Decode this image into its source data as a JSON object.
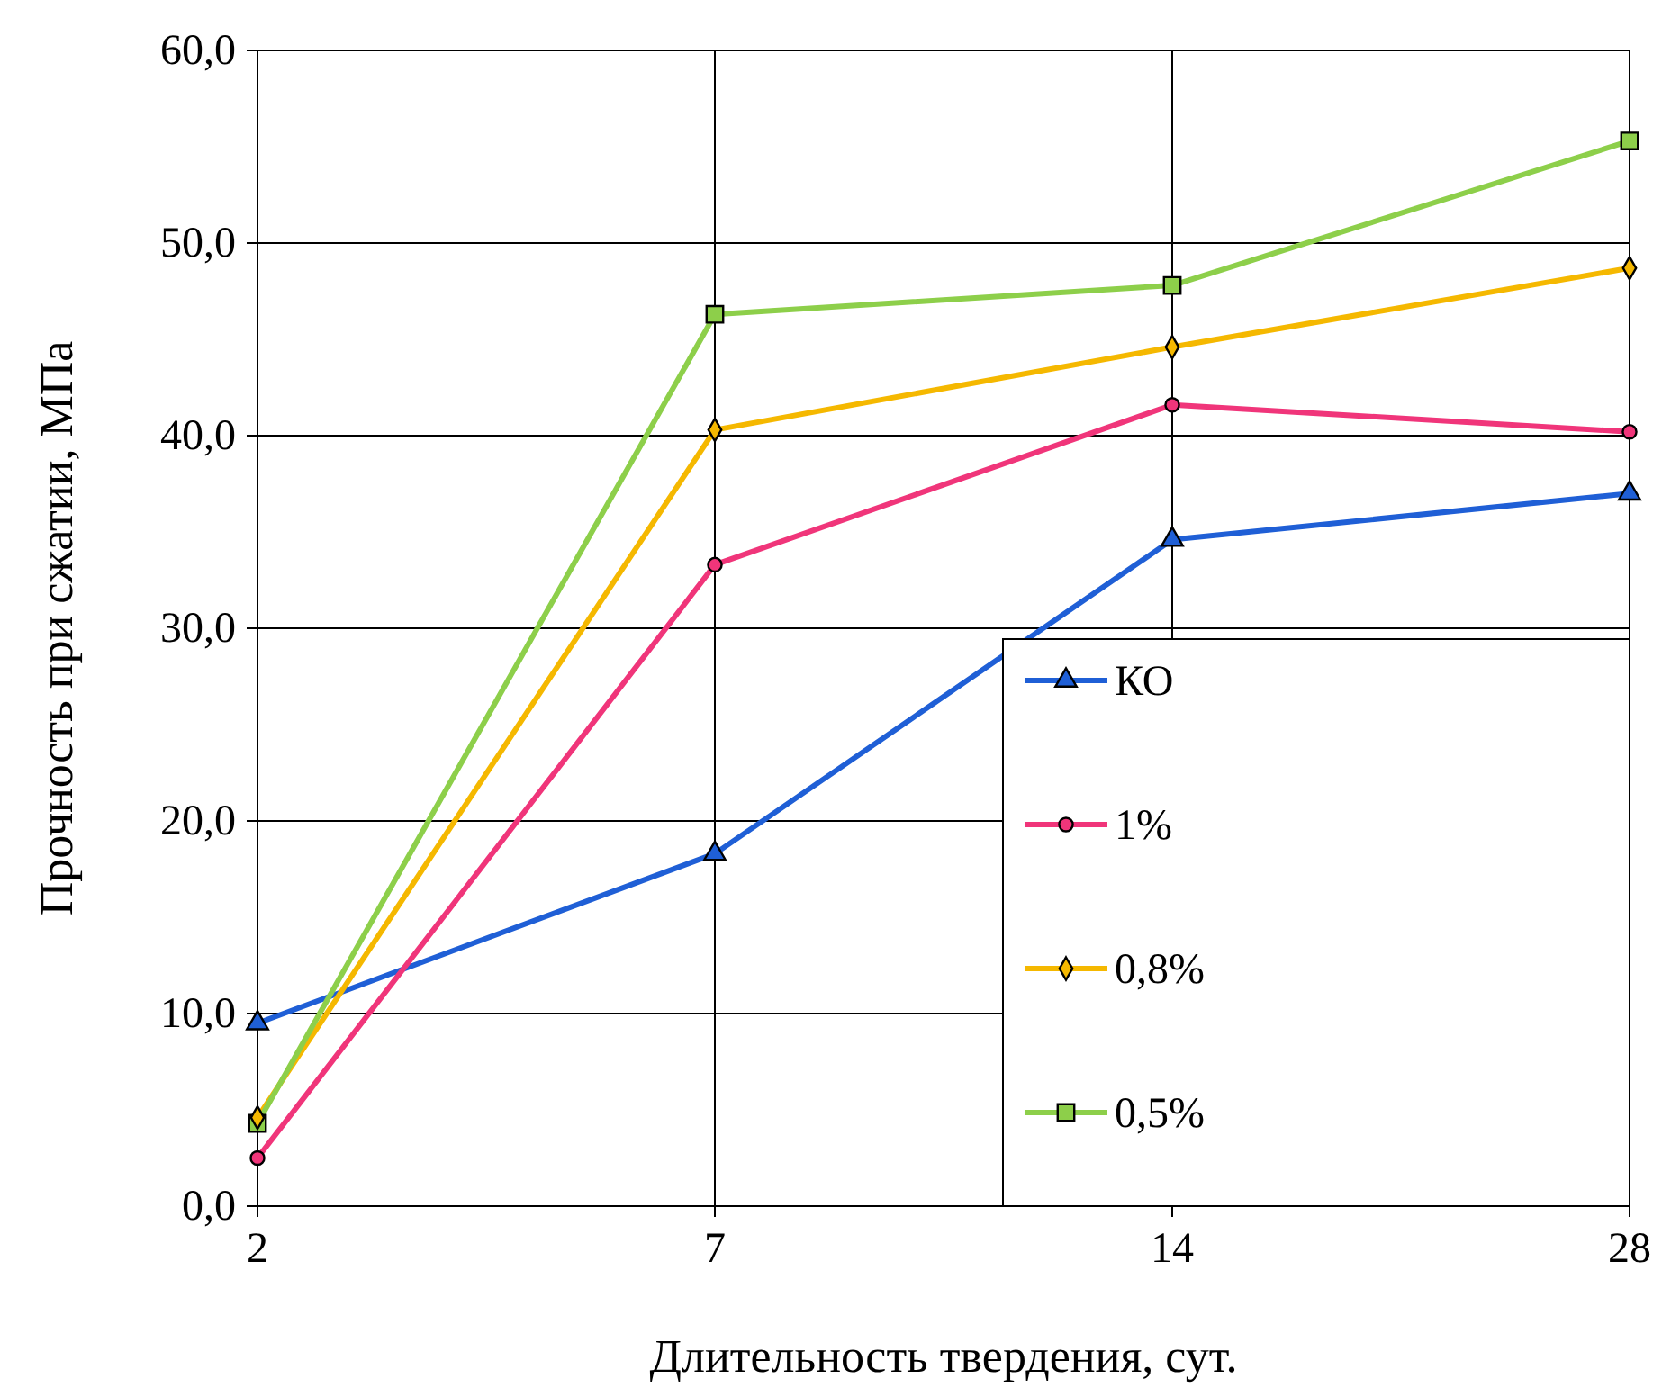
{
  "chart_data": {
    "type": "line",
    "xlabel": "Длительность твердения, сут.",
    "ylabel": "Прочность при сжатии, МПа",
    "categories": [
      "2",
      "7",
      "14",
      "28"
    ],
    "series": [
      {
        "name": "КО",
        "color": "#1f5fd6",
        "marker": "triangle",
        "values": [
          9.5,
          18.3,
          34.6,
          37.0
        ]
      },
      {
        "name": "1%",
        "color": "#f0357a",
        "marker": "circle",
        "values": [
          2.5,
          33.3,
          41.6,
          40.2
        ]
      },
      {
        "name": "0,8%",
        "color": "#f5b800",
        "marker": "diamond",
        "values": [
          4.6,
          40.3,
          44.6,
          48.7
        ]
      },
      {
        "name": "0,5%",
        "color": "#8dcf4a",
        "marker": "square",
        "values": [
          4.3,
          46.3,
          47.8,
          55.3
        ]
      }
    ],
    "ylim": [
      0,
      60
    ],
    "yticks": [
      {
        "value": 0,
        "label": "0,0"
      },
      {
        "value": 10,
        "label": "10,0"
      },
      {
        "value": 20,
        "label": "20,0"
      },
      {
        "value": 30,
        "label": "30,0"
      },
      {
        "value": 40,
        "label": "40,0"
      },
      {
        "value": 50,
        "label": "50,0"
      },
      {
        "value": 60,
        "label": "60,0"
      }
    ],
    "grid": true,
    "legend": "bottom right",
    "line_style": "solid"
  }
}
